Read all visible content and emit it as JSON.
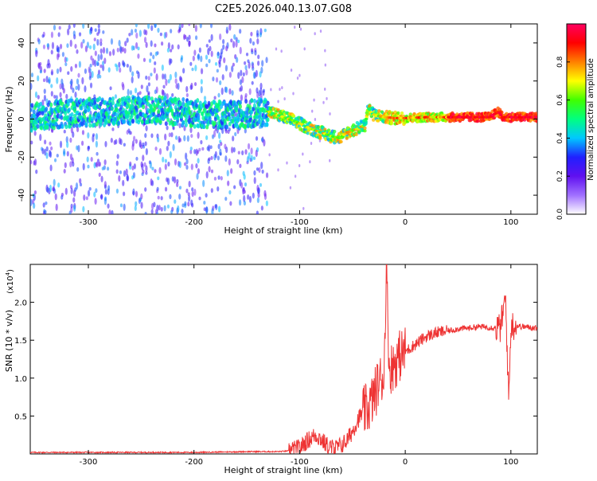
{
  "page": {
    "title": "C2E5.2026.040.13.07.G08"
  },
  "chart_data": [
    {
      "type": "heatmap",
      "name": "spectrogram",
      "xlabel": "Height of straight line (km)",
      "ylabel": "Frequency (Hz)",
      "xlim": [
        -355,
        125
      ],
      "ylim": [
        -50,
        50
      ],
      "xticks": [
        -300,
        -200,
        -100,
        0,
        100
      ],
      "xtick_labels": [
        "-300",
        "-200",
        "-100",
        "0",
        "100"
      ],
      "yticks": [
        -40,
        -20,
        0,
        20,
        40
      ],
      "ytick_labels": [
        "-40",
        "-20",
        "0",
        "20",
        "40"
      ],
      "ridge_frequency": {
        "x": [
          -355,
          -320,
          -280,
          -240,
          -200,
          -160,
          -130,
          -120,
          -105,
          -90,
          -80,
          -70,
          -62,
          -55,
          -45,
          -38,
          -35,
          -32,
          -28,
          -20,
          -10,
          0,
          20,
          40,
          60,
          80,
          88,
          92,
          100,
          125
        ],
        "freq": [
          1,
          3,
          4,
          5,
          3,
          2,
          4,
          2,
          -1,
          -5,
          -7,
          -9,
          -10,
          -7,
          -5,
          -3,
          6,
          3,
          2,
          1,
          0.5,
          0.5,
          1,
          1,
          1,
          1,
          4,
          1,
          1,
          1
        ]
      },
      "noise_region_xmax": -130,
      "colorbar": {
        "label": "Normalized spectral amplitude",
        "range": [
          0.0,
          1.0
        ],
        "ticks": [
          0.0,
          0.2,
          0.4,
          0.6,
          0.8
        ],
        "tick_labels": [
          "0.0",
          "0.2",
          "0.4",
          "0.6",
          "0.8"
        ],
        "colors": [
          "#ffffff",
          "#a070ff",
          "#6010f0",
          "#2020ff",
          "#00c8ff",
          "#00ff80",
          "#40ff00",
          "#ffff00",
          "#ff8000",
          "#ff0000",
          "#ff0060"
        ]
      }
    },
    {
      "type": "line",
      "name": "snr",
      "xlabel": "Height of straight line (km)",
      "ylabel": "SNR (10 * v/v)",
      "scale_label": "(x10",
      "scale_exponent": "4",
      "xlim": [
        -355,
        125
      ],
      "ylim": [
        0,
        2.5
      ],
      "xticks": [
        -300,
        -200,
        -100,
        0,
        100
      ],
      "xtick_labels": [
        "-300",
        "-200",
        "-100",
        "0",
        "100"
      ],
      "yticks": [
        0.5,
        1.0,
        1.5,
        2.0
      ],
      "ytick_labels": [
        "0.5",
        "1.0",
        "1.5",
        "2.0"
      ],
      "line_color": "#ee3333",
      "series": [
        {
          "name": "SNR",
          "x": [
            -355,
            -300,
            -250,
            -200,
            -150,
            -120,
            -110,
            -100,
            -95,
            -90,
            -85,
            -80,
            -75,
            -70,
            -65,
            -60,
            -55,
            -50,
            -45,
            -40,
            -35,
            -30,
            -25,
            -20,
            -18,
            -15,
            -10,
            -5,
            0,
            10,
            20,
            30,
            40,
            50,
            60,
            70,
            80,
            90,
            95,
            98,
            100,
            110,
            125
          ],
          "y": [
            0.02,
            0.02,
            0.02,
            0.02,
            0.03,
            0.03,
            0.04,
            0.08,
            0.15,
            0.2,
            0.25,
            0.2,
            0.12,
            0.08,
            0.08,
            0.12,
            0.18,
            0.3,
            0.45,
            0.55,
            0.6,
            0.75,
            0.95,
            1.05,
            2.5,
            1.1,
            1.2,
            1.3,
            1.35,
            1.45,
            1.55,
            1.6,
            1.62,
            1.65,
            1.66,
            1.68,
            1.67,
            1.66,
            2.05,
            0.7,
            1.7,
            1.68,
            1.66
          ]
        }
      ]
    }
  ]
}
